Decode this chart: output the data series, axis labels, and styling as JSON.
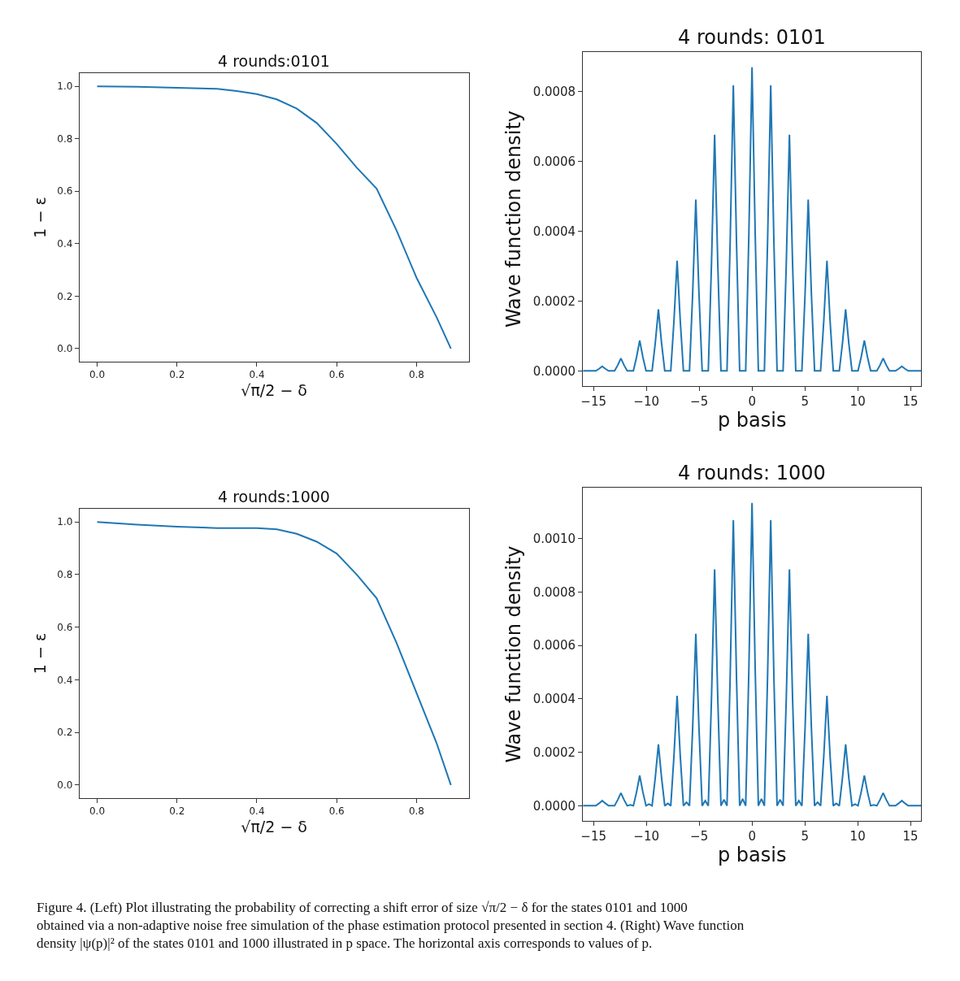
{
  "chart_data": [
    {
      "type": "line",
      "title": "4 rounds:0101",
      "xlabel": "√π/2 − δ",
      "ylabel": "1 − ε",
      "x": [
        0,
        0.1,
        0.2,
        0.3,
        0.35,
        0.4,
        0.45,
        0.5,
        0.55,
        0.6,
        0.65,
        0.7,
        0.75,
        0.8,
        0.85,
        0.886
      ],
      "series": [
        {
          "color": "#1f77b4",
          "values": [
            1.0,
            0.998,
            0.994,
            0.99,
            0.982,
            0.97,
            0.95,
            0.915,
            0.86,
            0.78,
            0.69,
            0.61,
            0.45,
            0.27,
            0.12,
            0.0
          ]
        }
      ],
      "xlim": [
        -0.0443,
        0.9305
      ],
      "ylim": [
        -0.05,
        1.05
      ],
      "xticks": [
        {
          "value": 0,
          "label": "0.0"
        },
        {
          "value": 0.2,
          "label": "0.2"
        },
        {
          "value": 0.4,
          "label": "0.4"
        },
        {
          "value": 0.6,
          "label": "0.6"
        },
        {
          "value": 0.8,
          "label": "0.8"
        }
      ],
      "yticks": [
        {
          "value": 0,
          "label": "0.0"
        },
        {
          "value": 0.2,
          "label": "0.2"
        },
        {
          "value": 0.4,
          "label": "0.4"
        },
        {
          "value": 0.6,
          "label": "0.6"
        },
        {
          "value": 0.8,
          "label": "0.8"
        },
        {
          "value": 1,
          "label": "1.0"
        }
      ],
      "grid": false,
      "legend": false,
      "marker": "none",
      "line_style": "solid"
    },
    {
      "type": "line",
      "title": "4 rounds: 0101",
      "xlabel": "p basis",
      "ylabel": "Wave function density",
      "x": [
        -16,
        -14.78,
        -14.48,
        -14.18,
        -13.88,
        -13.58,
        -13.3,
        -13.01,
        -12.71,
        -12.41,
        -12.11,
        -11.81,
        -11.52,
        -11.23,
        -10.93,
        -10.63,
        -10.33,
        -10.03,
        -9.75,
        -9.46,
        -9.16,
        -8.86,
        -8.56,
        -8.26,
        -7.97,
        -7.69,
        -7.39,
        -7.09,
        -6.79,
        -6.49,
        -6.2,
        -5.92,
        -5.62,
        -5.32,
        -5.02,
        -4.72,
        -4.43,
        -4.14,
        -3.84,
        -3.54,
        -3.24,
        -2.94,
        -2.66,
        -2.37,
        -2.07,
        -1.77,
        -1.47,
        -1.17,
        -0.89,
        -0.6,
        -0.3,
        0,
        0.3,
        0.6,
        0.89,
        1.17,
        1.47,
        1.77,
        2.07,
        2.37,
        2.66,
        2.94,
        3.24,
        3.54,
        3.84,
        4.14,
        4.43,
        4.72,
        5.02,
        5.32,
        5.62,
        5.92,
        6.2,
        6.49,
        6.79,
        7.09,
        7.39,
        7.69,
        7.97,
        8.26,
        8.56,
        8.86,
        9.16,
        9.46,
        9.75,
        10.03,
        10.33,
        10.63,
        10.93,
        11.23,
        11.52,
        11.81,
        12.11,
        12.41,
        12.71,
        13.01,
        13.3,
        13.58,
        13.88,
        14.18,
        14.48,
        14.78,
        16
      ],
      "series": [
        {
          "color": "#1f77b4",
          "values": [
            0,
            0,
            6e-06,
            1.3e-05,
            6e-06,
            0,
            0,
            0,
            1.6e-05,
            3.6e-05,
            1.6e-05,
            0,
            0,
            0,
            3.9e-05,
            8.7e-05,
            3.9e-05,
            0,
            0,
            0,
            7.9e-05,
            0.000176,
            7.9e-05,
            0,
            0,
            0,
            0.000142,
            0.000315,
            0.000142,
            0,
            0,
            0,
            0.00022,
            0.00049,
            0.00022,
            0,
            0,
            0,
            0.000304,
            0.000676,
            0.000304,
            0,
            0,
            0,
            0.000368,
            0.000817,
            0.000368,
            0,
            0,
            0,
            0.000391,
            0.000869,
            0.000391,
            0,
            0,
            0,
            0.000368,
            0.000817,
            0.000368,
            0,
            0,
            0,
            0.000304,
            0.000676,
            0.000304,
            0,
            0,
            0,
            0.00022,
            0.00049,
            0.00022,
            0,
            0,
            0,
            0.000142,
            0.000315,
            0.000142,
            0,
            0,
            0,
            7.9e-05,
            0.000176,
            7.9e-05,
            0,
            0,
            0,
            3.9e-05,
            8.7e-05,
            3.9e-05,
            0,
            0,
            0,
            1.6e-05,
            3.6e-05,
            1.6e-05,
            0,
            0,
            0,
            6e-06,
            1.3e-05,
            6e-06,
            0,
            0
          ]
        }
      ],
      "xlim": [
        -16,
        16
      ],
      "ylim": [
        -4.35e-05,
        0.0009125
      ],
      "xticks": [
        -15,
        -10,
        -5,
        0,
        5,
        10,
        15
      ],
      "yticks": [
        {
          "value": 0,
          "label": "0.0000"
        },
        {
          "value": 0.0002,
          "label": "0.0002"
        },
        {
          "value": 0.0004,
          "label": "0.0004"
        },
        {
          "value": 0.0006,
          "label": "0.0006"
        },
        {
          "value": 0.0008,
          "label": "0.0008"
        }
      ],
      "grid": false,
      "legend": false,
      "marker": "none",
      "line_style": "solid"
    },
    {
      "type": "line",
      "title": "4 rounds:1000",
      "xlabel": "√π/2 − δ",
      "ylabel": "1 − ε",
      "x": [
        0,
        0.1,
        0.2,
        0.3,
        0.4,
        0.45,
        0.5,
        0.55,
        0.6,
        0.65,
        0.7,
        0.75,
        0.8,
        0.85,
        0.886
      ],
      "series": [
        {
          "color": "#1f77b4",
          "values": [
            1.0,
            0.99,
            0.982,
            0.977,
            0.977,
            0.972,
            0.955,
            0.925,
            0.88,
            0.8,
            0.71,
            0.54,
            0.35,
            0.16,
            0.0
          ]
        }
      ],
      "xlim": [
        -0.0443,
        0.9305
      ],
      "ylim": [
        -0.05,
        1.05
      ],
      "xticks": [
        {
          "value": 0,
          "label": "0.0"
        },
        {
          "value": 0.2,
          "label": "0.2"
        },
        {
          "value": 0.4,
          "label": "0.4"
        },
        {
          "value": 0.6,
          "label": "0.6"
        },
        {
          "value": 0.8,
          "label": "0.8"
        }
      ],
      "yticks": [
        {
          "value": 0,
          "label": "0.0"
        },
        {
          "value": 0.2,
          "label": "0.2"
        },
        {
          "value": 0.4,
          "label": "0.4"
        },
        {
          "value": 0.6,
          "label": "0.6"
        },
        {
          "value": 0.8,
          "label": "0.8"
        },
        {
          "value": 1,
          "label": "1.0"
        }
      ],
      "grid": false,
      "legend": false,
      "marker": "none",
      "line_style": "solid"
    },
    {
      "type": "line",
      "title": "4 rounds: 1000",
      "xlabel": "p basis",
      "ylabel": "Wave function density",
      "x": [
        -16,
        -14.78,
        -14.48,
        -14.18,
        -13.88,
        -13.58,
        -13.3,
        -13.01,
        -12.71,
        -12.41,
        -12.11,
        -11.81,
        -11.52,
        -11.23,
        -10.93,
        -10.63,
        -10.33,
        -10.03,
        -9.75,
        -9.46,
        -9.16,
        -8.86,
        -8.56,
        -8.26,
        -7.97,
        -7.69,
        -7.39,
        -7.09,
        -6.79,
        -6.49,
        -6.2,
        -5.92,
        -5.62,
        -5.32,
        -5.02,
        -4.72,
        -4.43,
        -4.14,
        -3.84,
        -3.54,
        -3.24,
        -2.94,
        -2.66,
        -2.37,
        -2.07,
        -1.77,
        -1.47,
        -1.17,
        -0.89,
        -0.6,
        -0.3,
        0,
        0.3,
        0.6,
        0.89,
        1.17,
        1.47,
        1.77,
        2.07,
        2.37,
        2.66,
        2.94,
        3.24,
        3.54,
        3.84,
        4.14,
        4.43,
        4.72,
        5.02,
        5.32,
        5.62,
        5.92,
        6.2,
        6.49,
        6.79,
        7.09,
        7.39,
        7.69,
        7.97,
        8.26,
        8.56,
        8.86,
        9.16,
        9.46,
        9.75,
        10.03,
        10.33,
        10.63,
        10.93,
        11.23,
        11.52,
        11.81,
        12.11,
        12.41,
        12.71,
        13.01,
        13.3,
        13.58,
        13.88,
        14.18,
        14.48,
        14.78,
        16
      ],
      "series": [
        {
          "color": "#1f77b4",
          "values": [
            0,
            0,
            9e-06,
            1.9e-05,
            9e-06,
            0,
            0,
            0,
            2.2e-05,
            4.8e-05,
            2.2e-05,
            0,
            3e-06,
            0,
            5.1e-05,
            0.000113,
            5.1e-05,
            0,
            6e-06,
            0,
            0.000104,
            0.00023,
            0.000104,
            0,
            9e-06,
            0,
            0.000185,
            0.000412,
            0.000185,
            0,
            1.3e-05,
            0,
            0.00029,
            0.000644,
            0.00029,
            0,
            1.9e-05,
            0,
            0.000398,
            0.000885,
            0.000398,
            0,
            2.3e-05,
            0,
            0.000481,
            0.001069,
            0.000481,
            0,
            2.6e-05,
            0,
            0.00051,
            0.001134,
            0.00051,
            0,
            2.6e-05,
            0,
            0.000481,
            0.001069,
            0.000481,
            0,
            2.3e-05,
            0,
            0.000398,
            0.000885,
            0.000398,
            0,
            1.9e-05,
            0,
            0.00029,
            0.000644,
            0.00029,
            0,
            1.3e-05,
            0,
            0.000185,
            0.000412,
            0.000185,
            0,
            9e-06,
            0,
            0.000104,
            0.00023,
            0.000104,
            0,
            6e-06,
            0,
            5.1e-05,
            0.000113,
            5.1e-05,
            0,
            3e-06,
            0,
            2.2e-05,
            4.8e-05,
            2.2e-05,
            0,
            0,
            0,
            9e-06,
            1.9e-05,
            9e-06,
            0,
            0
          ]
        }
      ],
      "xlim": [
        -16,
        16
      ],
      "ylim": [
        -5.67e-05,
        0.001191
      ],
      "xticks": [
        -15,
        -10,
        -5,
        0,
        5,
        10,
        15
      ],
      "yticks": [
        {
          "value": 0,
          "label": "0.0000"
        },
        {
          "value": 0.0002,
          "label": "0.0002"
        },
        {
          "value": 0.0004,
          "label": "0.0004"
        },
        {
          "value": 0.0006,
          "label": "0.0006"
        },
        {
          "value": 0.0008,
          "label": "0.0008"
        },
        {
          "value": 0.001,
          "label": "0.0010"
        }
      ],
      "grid": false,
      "legend": false,
      "marker": "none",
      "line_style": "solid",
      "annotations": [
        "Figure 4. (Left) Plot illustrating the probability of correcting a shift error of size √π/2 − δ for the states 0101 and 1000 obtained via a non-adaptive noise free simulation of the phase estimation protocol presented in section 4. (Right) Wave function density |ψ(p)|² of the states 0101 and 1000 illustrated in p space. The horizontal axis corresponds to values of p."
      ]
    }
  ]
}
